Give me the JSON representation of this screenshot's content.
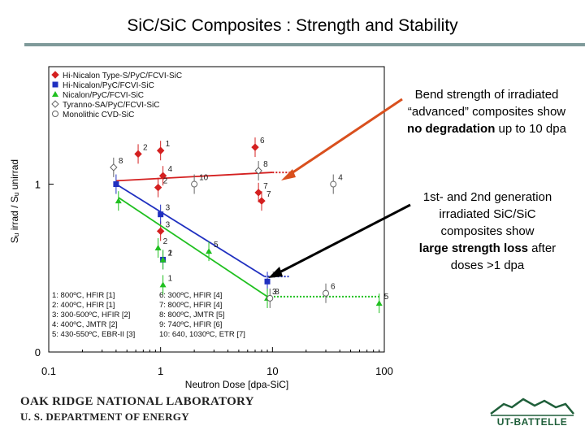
{
  "slide": {
    "title": "SiC/SiC Composites : Strength and Stability",
    "annotation_top": {
      "line1": "Bend strength of irradiated",
      "line2": "“advanced” composites show",
      "line3_bold": "no degradation",
      "line3_rest": " up to 10 dpa"
    },
    "annotation_bottom": {
      "line1": "1st- and 2nd generation",
      "line2": "irradiated SiC/SiC",
      "line3": "composites show",
      "line4_bold": "large strength loss",
      "line4_rest": " after",
      "line5": "doses >1 dpa"
    },
    "footer_org_line1": "OAK RIDGE NATIONAL LABORATORY",
    "footer_org_line2": "U. S. DEPARTMENT OF ENERGY",
    "logo_text": "UT-BATTELLE"
  },
  "chart_data": {
    "type": "scatter",
    "xlabel": "Neutron Dose [dpa-SiC]",
    "ylabel": "Sᵤ irrad / Sᵤ unirrad",
    "xscale": "log",
    "xlim": [
      0.1,
      100
    ],
    "ylim": [
      0,
      1.7
    ],
    "x_ticks": [
      "0.1",
      "1",
      "10",
      "100"
    ],
    "x_tick_values": [
      0.1,
      1,
      10,
      100
    ],
    "y_ticks": [
      "0",
      "1"
    ],
    "y_tick_values": [
      0,
      1
    ],
    "legend": [
      {
        "label": "Hi-Nicalon Type-S/PyC/FCVI-SiC",
        "marker": "diamond",
        "color": "#d42020"
      },
      {
        "label": "Hi-Nicalon/PyC/FCVI-SiC",
        "marker": "square",
        "color": "#2030c0"
      },
      {
        "label": "Nicalon/PyC/FCVI-SiC",
        "marker": "triangle",
        "color": "#20c020"
      },
      {
        "label": "Tyranno-SA/PyC/FCVI-SiC",
        "marker": "open-diamond",
        "color": "#666666"
      },
      {
        "label": "Monolithic CVD-SiC",
        "marker": "circle",
        "color": "#666666"
      }
    ],
    "conditions": [
      "1: 800ºC, HFIR [1]",
      "2: 400ºC, HFIR [1]",
      "3: 300-500ºC, HFIR [2]",
      "4: 400ºC, JMTR [2]",
      "5: 430-550ºC, EBR-II [3]",
      "6: 300ºC, HFIR [4]",
      "7: 800ºC, HFIR [4]",
      "8: 800ºC, JMTR [5]",
      "9: 740ºC, HFIR [6]",
      "10: 640, 1030ºC, ETR [7]"
    ],
    "series": [
      {
        "name": "Hi-Nicalon Type-S/PyC/FCVI-SiC",
        "color": "#d42020",
        "points": [
          {
            "x": 0.63,
            "y": 1.18,
            "label": "2"
          },
          {
            "x": 1.0,
            "y": 1.2,
            "label": "1"
          },
          {
            "x": 1.05,
            "y": 1.05,
            "label": "4"
          },
          {
            "x": 0.95,
            "y": 0.98,
            "label": "2"
          },
          {
            "x": 1.0,
            "y": 0.72,
            "label": "3"
          },
          {
            "x": 7.0,
            "y": 1.22,
            "label": "6"
          },
          {
            "x": 7.5,
            "y": 0.95,
            "label": "7"
          },
          {
            "x": 8.0,
            "y": 0.9,
            "label": "7"
          }
        ],
        "trend": [
          {
            "x": 0.4,
            "y": 1.02
          },
          {
            "x": 10,
            "y": 1.07
          }
        ],
        "trend_ext": [
          {
            "x": 10,
            "y": 1.07
          },
          {
            "x": 15,
            "y": 1.07
          }
        ]
      },
      {
        "name": "Hi-Nicalon/PyC/FCVI-SiC",
        "color": "#2030c0",
        "points": [
          {
            "x": 0.4,
            "y": 1.0,
            "label": ""
          },
          {
            "x": 1.0,
            "y": 0.82,
            "label": "3"
          },
          {
            "x": 1.05,
            "y": 0.55,
            "label": "1"
          },
          {
            "x": 9.0,
            "y": 0.42,
            "label": "7"
          }
        ],
        "trend": [
          {
            "x": 0.4,
            "y": 1.0
          },
          {
            "x": 8.5,
            "y": 0.45
          }
        ],
        "trend_ext": [
          {
            "x": 8.5,
            "y": 0.45
          },
          {
            "x": 14,
            "y": 0.45
          }
        ]
      },
      {
        "name": "Nicalon/PyC/FCVI-SiC",
        "color": "#20c020",
        "points": [
          {
            "x": 0.42,
            "y": 0.9,
            "label": ""
          },
          {
            "x": 0.95,
            "y": 0.62,
            "label": "2"
          },
          {
            "x": 1.05,
            "y": 0.55,
            "label": "2"
          },
          {
            "x": 1.05,
            "y": 0.4,
            "label": "1"
          },
          {
            "x": 2.7,
            "y": 0.6,
            "label": "5"
          },
          {
            "x": 9.0,
            "y": 0.32,
            "label": "3"
          },
          {
            "x": 90,
            "y": 0.29,
            "label": "5"
          }
        ],
        "trend": [
          {
            "x": 0.42,
            "y": 0.92
          },
          {
            "x": 9.0,
            "y": 0.33
          }
        ],
        "trend_ext": [
          {
            "x": 9.0,
            "y": 0.33
          },
          {
            "x": 90,
            "y": 0.33
          }
        ]
      },
      {
        "name": "Tyranno-SA/PyC/FCVI-SiC",
        "color": "#666666",
        "points": [
          {
            "x": 0.38,
            "y": 1.1,
            "label": "8"
          },
          {
            "x": 7.5,
            "y": 1.08,
            "label": "8"
          }
        ]
      },
      {
        "name": "Monolithic CVD-SiC",
        "color": "#666666",
        "points": [
          {
            "x": 2.0,
            "y": 1.0,
            "label": "10"
          },
          {
            "x": 35,
            "y": 1.0,
            "label": "4"
          },
          {
            "x": 30,
            "y": 0.35,
            "label": "6"
          },
          {
            "x": 9.5,
            "y": 0.32,
            "label": "8"
          }
        ]
      }
    ]
  }
}
